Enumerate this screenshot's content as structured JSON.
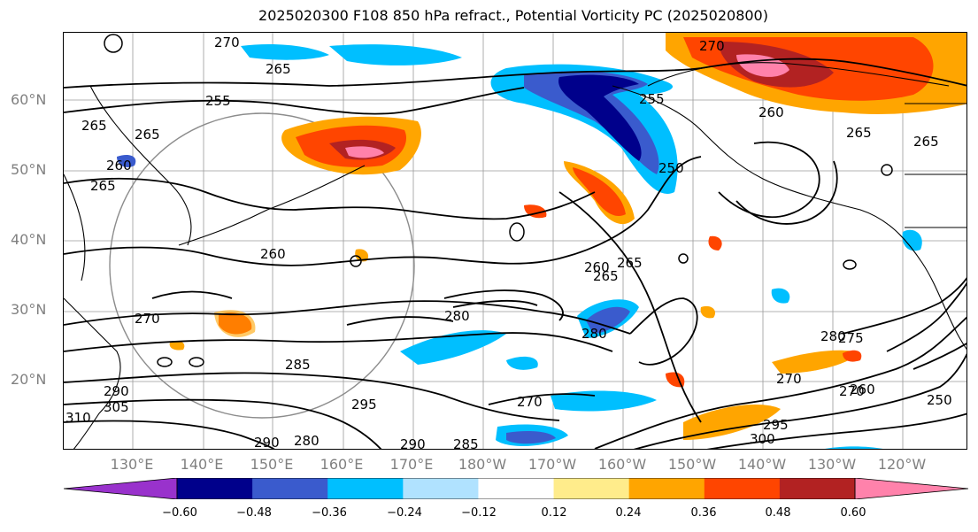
{
  "title": "2025020300 F108 850 hPa refract., Potential Vorticity PC (2025020800)",
  "lat_labels": [
    "60°N",
    "50°N",
    "40°N",
    "30°N",
    "20°N"
  ],
  "lon_labels": [
    "130°E",
    "140°E",
    "150°E",
    "160°E",
    "170°E",
    "180°W",
    "170°W",
    "160°W",
    "150°W",
    "140°W",
    "130°W",
    "120°W"
  ],
  "colorbar": {
    "ticks": [
      "−0.60",
      "−0.48",
      "−0.36",
      "−0.24",
      "−0.12",
      "0.12",
      "0.24",
      "0.36",
      "0.48",
      "0.60"
    ],
    "colors": [
      "#9932cc",
      "#00008b",
      "#3a5bcd",
      "#00bfff",
      "#b0e2ff",
      "#ffffff",
      "#ffec8b",
      "#ffa500",
      "#ff4500",
      "#b22222",
      "#ff82ab"
    ]
  },
  "contour_labels": [
    "270",
    "265",
    "255",
    "265",
    "260",
    "265",
    "260",
    "265",
    "270",
    "255",
    "250",
    "265",
    "260",
    "265",
    "265",
    "260",
    "270",
    "280",
    "285",
    "295",
    "290",
    "305",
    "310",
    "270",
    "280",
    "290",
    "285",
    "300",
    "295",
    "270",
    "280",
    "270",
    "260",
    "250",
    "265",
    "275",
    "290",
    "280"
  ]
}
